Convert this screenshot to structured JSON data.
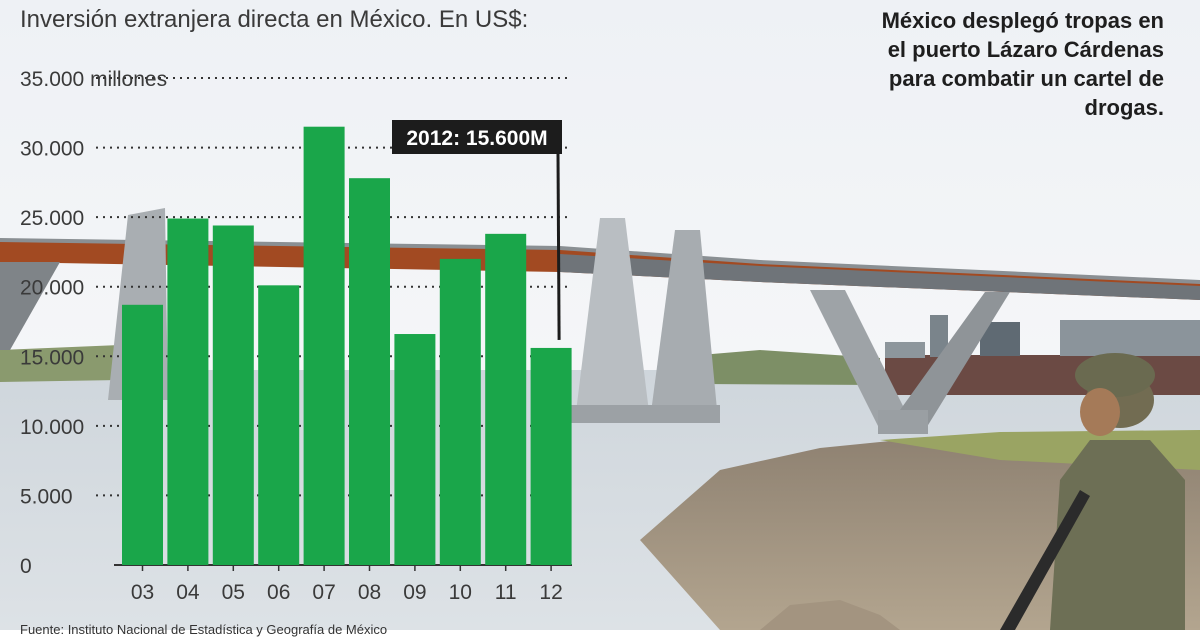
{
  "header": {
    "title": "Inversión extranjera directa en México. En US$:",
    "caption": "México desplegó tropas en el puerto Lázaro Cárdenas para combatir un cartel de drogas.",
    "source": "Fuente: Instituto Nacional de Estadística y Geografía de México"
  },
  "colors": {
    "bar": "#1aa64a",
    "callout_bg": "#1c1c1c",
    "callout_text": "#ffffff",
    "axis_text": "#3a3a3a"
  },
  "chart_data": {
    "type": "bar",
    "title": "Inversión extranjera directa en México. En US$:",
    "xlabel": "",
    "ylabel": "",
    "ylim": [
      0,
      35000
    ],
    "yticks": [
      {
        "value": 35000,
        "label": "35.000 millones"
      },
      {
        "value": 30000,
        "label": "30.000"
      },
      {
        "value": 25000,
        "label": "25.000"
      },
      {
        "value": 20000,
        "label": "20.000"
      },
      {
        "value": 15000,
        "label": "15.000"
      },
      {
        "value": 10000,
        "label": "10.000"
      },
      {
        "value": 5000,
        "label": "5.000"
      },
      {
        "value": 0,
        "label": "0"
      }
    ],
    "categories": [
      "03",
      "04",
      "05",
      "06",
      "07",
      "08",
      "09",
      "10",
      "11",
      "12"
    ],
    "values": [
      18700,
      24900,
      24400,
      20100,
      31500,
      27800,
      16600,
      22000,
      23800,
      15600
    ],
    "grid": true,
    "annotation": {
      "category": "12",
      "text": "2012: 15.600M"
    }
  }
}
